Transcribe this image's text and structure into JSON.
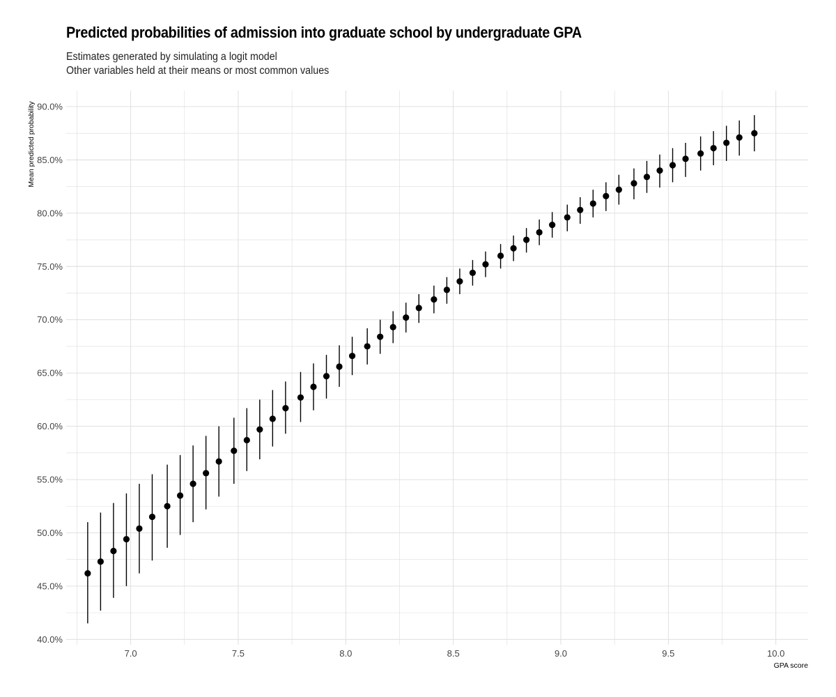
{
  "title": "Predicted probabilities of admission into graduate school by undergraduate GPA",
  "subtitle_lines": [
    "Estimates generated by simulating a logit model",
    "Other variables held at their means or most common values"
  ],
  "chart_data": {
    "type": "scatter",
    "subtype": "pointrange",
    "title": "Predicted probabilities of admission into graduate school by undergraduate GPA",
    "subtitle": "Estimates generated by simulating a logit model / Other variables held at their means or most common values",
    "xlabel": "GPA score",
    "ylabel": "Mean predicted probability",
    "xlim": [
      6.7,
      10.15
    ],
    "ylim": [
      0.395,
      0.915
    ],
    "x_ticks": [
      7.0,
      7.5,
      8.0,
      8.5,
      9.0,
      9.5,
      10.0
    ],
    "x_tick_labels": [
      "7.0",
      "7.5",
      "8.0",
      "8.5",
      "9.0",
      "9.5",
      "10.0"
    ],
    "y_ticks": [
      0.4,
      0.45,
      0.5,
      0.55,
      0.6,
      0.65,
      0.7,
      0.75,
      0.8,
      0.85,
      0.9
    ],
    "y_tick_labels": [
      "40.0%",
      "45.0%",
      "50.0%",
      "55.0%",
      "60.0%",
      "65.0%",
      "70.0%",
      "75.0%",
      "80.0%",
      "85.0%",
      "90.0%"
    ],
    "grid": true,
    "legend": "none",
    "point_color": "#000000",
    "grid_color": "#dcdcdc",
    "x": [
      6.8,
      6.86,
      6.92,
      6.98,
      7.04,
      7.1,
      7.17,
      7.23,
      7.29,
      7.35,
      7.41,
      7.48,
      7.54,
      7.6,
      7.66,
      7.72,
      7.79,
      7.85,
      7.91,
      7.97,
      8.03,
      8.1,
      8.16,
      8.22,
      8.28,
      8.34,
      8.41,
      8.47,
      8.53,
      8.59,
      8.65,
      8.72,
      8.78,
      8.84,
      8.9,
      8.96,
      9.03,
      9.09,
      9.15,
      9.21,
      9.27,
      9.34,
      9.4,
      9.46,
      9.52,
      9.58,
      9.65,
      9.71,
      9.77,
      9.83,
      9.9
    ],
    "y": [
      0.462,
      0.473,
      0.483,
      0.494,
      0.504,
      0.515,
      0.525,
      0.535,
      0.546,
      0.556,
      0.567,
      0.577,
      0.587,
      0.597,
      0.607,
      0.617,
      0.627,
      0.637,
      0.647,
      0.656,
      0.666,
      0.675,
      0.684,
      0.693,
      0.702,
      0.711,
      0.719,
      0.728,
      0.736,
      0.744,
      0.752,
      0.76,
      0.767,
      0.775,
      0.782,
      0.789,
      0.796,
      0.803,
      0.809,
      0.816,
      0.822,
      0.828,
      0.834,
      0.84,
      0.845,
      0.851,
      0.856,
      0.861,
      0.866,
      0.871,
      0.875
    ],
    "ymin": [
      0.415,
      0.427,
      0.439,
      0.45,
      0.462,
      0.474,
      0.486,
      0.498,
      0.51,
      0.522,
      0.534,
      0.546,
      0.558,
      0.569,
      0.581,
      0.593,
      0.604,
      0.615,
      0.626,
      0.637,
      0.648,
      0.658,
      0.668,
      0.678,
      0.688,
      0.697,
      0.706,
      0.715,
      0.724,
      0.732,
      0.74,
      0.748,
      0.755,
      0.763,
      0.77,
      0.777,
      0.783,
      0.79,
      0.796,
      0.802,
      0.808,
      0.813,
      0.819,
      0.824,
      0.829,
      0.834,
      0.84,
      0.845,
      0.849,
      0.854,
      0.858
    ],
    "ymax": [
      0.51,
      0.519,
      0.528,
      0.537,
      0.546,
      0.555,
      0.564,
      0.573,
      0.582,
      0.591,
      0.6,
      0.608,
      0.617,
      0.625,
      0.634,
      0.642,
      0.651,
      0.659,
      0.667,
      0.676,
      0.684,
      0.692,
      0.7,
      0.708,
      0.716,
      0.724,
      0.732,
      0.74,
      0.748,
      0.756,
      0.764,
      0.771,
      0.779,
      0.786,
      0.794,
      0.801,
      0.808,
      0.815,
      0.822,
      0.829,
      0.836,
      0.842,
      0.849,
      0.855,
      0.861,
      0.866,
      0.872,
      0.877,
      0.882,
      0.887,
      0.892
    ]
  }
}
